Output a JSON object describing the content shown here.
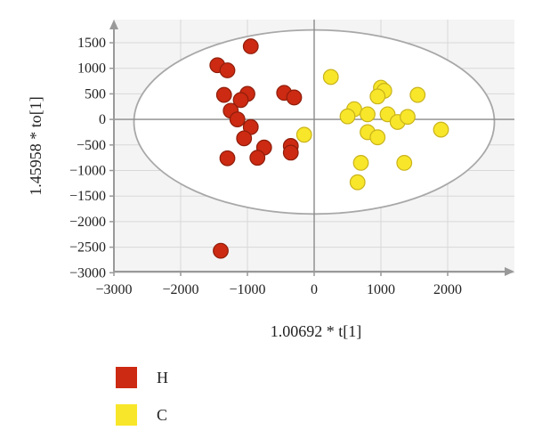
{
  "chart_data": {
    "type": "scatter",
    "xlabel": "1.00692 * t[1]",
    "ylabel": "1.45958 * to[1]",
    "xlim": [
      -3000,
      2800
    ],
    "ylim": [
      -3000,
      1700
    ],
    "x_ticks": [
      -3000,
      -2000,
      -1000,
      0,
      1000,
      2000
    ],
    "y_ticks": [
      1500,
      1000,
      500,
      0,
      -500,
      -1000,
      -1500,
      -2000,
      -2500,
      -3000
    ],
    "grid": true,
    "confidence_ellipse": {
      "center": [
        0,
        -50
      ],
      "radius_x": 2700,
      "radius_y": 1800
    },
    "legend_position": "bottom-left",
    "series": [
      {
        "name": "H",
        "color": "#cc2a12",
        "points": [
          {
            "x": -950,
            "y": 1430
          },
          {
            "x": -1450,
            "y": 1060
          },
          {
            "x": -1300,
            "y": 960
          },
          {
            "x": -1350,
            "y": 480
          },
          {
            "x": -1000,
            "y": 500
          },
          {
            "x": -1100,
            "y": 380
          },
          {
            "x": -1250,
            "y": 170
          },
          {
            "x": -1150,
            "y": 0
          },
          {
            "x": -950,
            "y": -150
          },
          {
            "x": -1050,
            "y": -370
          },
          {
            "x": -450,
            "y": 520
          },
          {
            "x": -300,
            "y": 430
          },
          {
            "x": -750,
            "y": -550
          },
          {
            "x": -350,
            "y": -520
          },
          {
            "x": -350,
            "y": -650
          },
          {
            "x": -850,
            "y": -750
          },
          {
            "x": -1300,
            "y": -760
          },
          {
            "x": -1400,
            "y": -2570
          }
        ]
      },
      {
        "name": "C",
        "color": "#f8e62a",
        "points": [
          {
            "x": 250,
            "y": 830
          },
          {
            "x": 1000,
            "y": 620
          },
          {
            "x": 1050,
            "y": 560
          },
          {
            "x": 950,
            "y": 450
          },
          {
            "x": 1550,
            "y": 480
          },
          {
            "x": 600,
            "y": 200
          },
          {
            "x": 500,
            "y": 60
          },
          {
            "x": 800,
            "y": 100
          },
          {
            "x": 1100,
            "y": 100
          },
          {
            "x": 1250,
            "y": -50
          },
          {
            "x": 1400,
            "y": 50
          },
          {
            "x": 800,
            "y": -250
          },
          {
            "x": 950,
            "y": -350
          },
          {
            "x": 1900,
            "y": -200
          },
          {
            "x": -150,
            "y": -300
          },
          {
            "x": 700,
            "y": -850
          },
          {
            "x": 1350,
            "y": -850
          },
          {
            "x": 650,
            "y": -1230
          }
        ]
      }
    ]
  }
}
